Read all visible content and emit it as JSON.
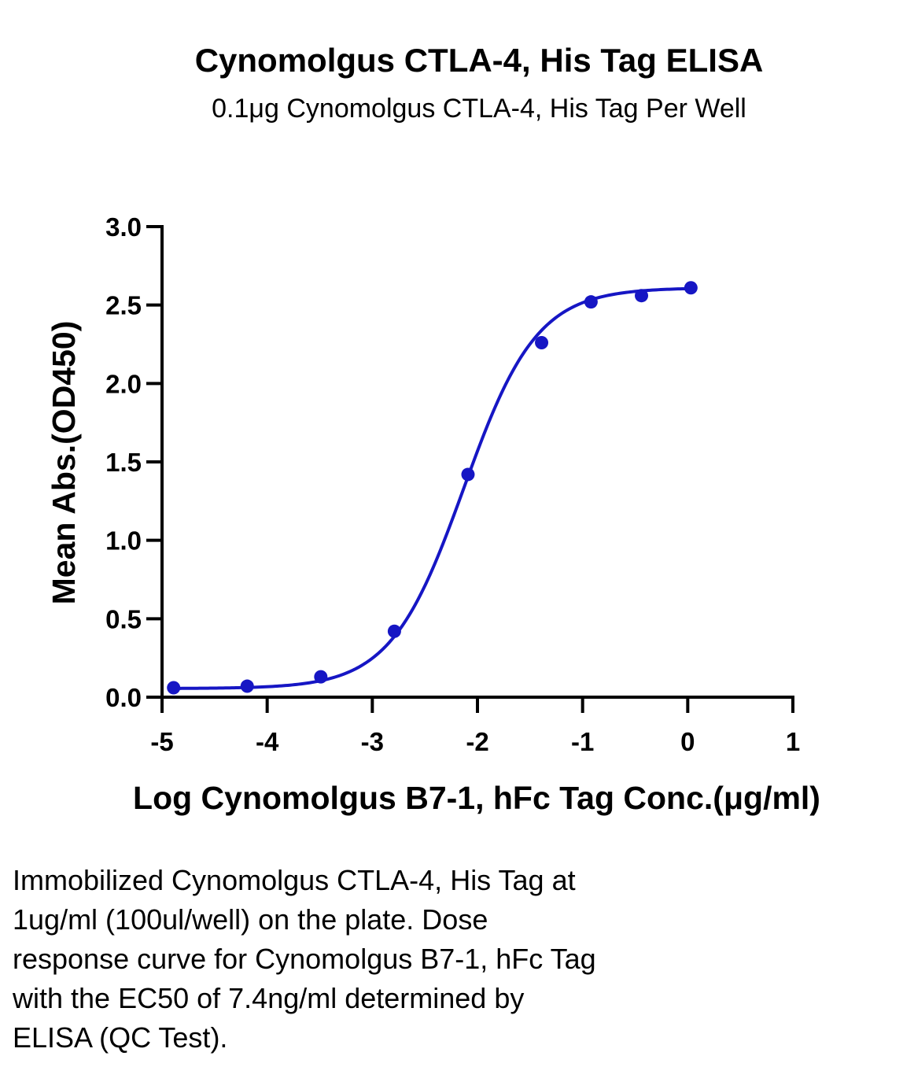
{
  "chart_data": {
    "type": "scatter",
    "title": "Cynomolgus CTLA-4, His Tag ELISA",
    "subtitle": "0.1μg Cynomolgus CTLA-4, His Tag Per Well",
    "xlabel": "Log Cynomolgus B7-1, hFc Tag Conc.(μg/ml)",
    "ylabel": "Mean Abs.(OD450)",
    "xlim": [
      -5,
      1
    ],
    "ylim": [
      0,
      3.0
    ],
    "x_ticks": [
      -5,
      -4,
      -3,
      -2,
      -1,
      0,
      1
    ],
    "x_tick_labels": [
      "-5",
      "-4",
      "-3",
      "-2",
      "-1",
      "0",
      "1"
    ],
    "y_ticks": [
      0,
      0.5,
      1.0,
      1.5,
      2.0,
      2.5,
      3.0
    ],
    "y_tick_labels": [
      "0.0",
      "0.5",
      "1.0",
      "1.5",
      "2.0",
      "2.5",
      "3.0"
    ],
    "grid": false,
    "series": [
      {
        "color": "#1616c4",
        "points": [
          {
            "x": -4.89,
            "y": 0.06
          },
          {
            "x": -4.19,
            "y": 0.07
          },
          {
            "x": -3.49,
            "y": 0.13
          },
          {
            "x": -2.79,
            "y": 0.42
          },
          {
            "x": -2.09,
            "y": 1.42
          },
          {
            "x": -1.39,
            "y": 2.26
          },
          {
            "x": -0.92,
            "y": 2.52
          },
          {
            "x": -0.44,
            "y": 2.56
          },
          {
            "x": 0.03,
            "y": 2.61
          }
        ],
        "fit_curve": {
          "model": "4PL",
          "bottom": 0.055,
          "top": 2.61,
          "logEC50": -2.13,
          "hillslope": 1.25
        }
      }
    ]
  },
  "caption": {
    "lines": [
      "Immobilized Cynomolgus CTLA-4, His Tag at",
      "1ug/ml (100ul/well) on the plate. Dose",
      "response curve for Cynomolgus B7-1, hFc Tag",
      "with the EC50 of 7.4ng/ml determined by",
      "ELISA (QC Test)."
    ]
  }
}
